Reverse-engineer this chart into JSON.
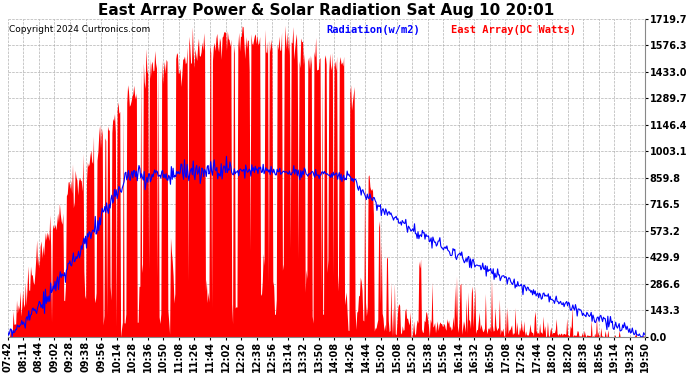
{
  "title": "East Array Power & Solar Radiation Sat Aug 10 20:01",
  "copyright": "Copyright 2024 Curtronics.com",
  "legend_radiation": "Radiation(w/m2)",
  "legend_east": "East Array(DC Watts)",
  "radiation_color": "blue",
  "east_color": "red",
  "ymin": 0.0,
  "ymax": 1719.7,
  "yticks": [
    0.0,
    143.3,
    286.6,
    429.9,
    573.2,
    716.5,
    859.8,
    1003.1,
    1146.4,
    1289.7,
    1433.0,
    1576.3,
    1719.7
  ],
  "background_color": "#ffffff",
  "grid_color": "#cccccc",
  "title_fontsize": 11,
  "tick_fontsize": 7,
  "time_labels": [
    "07:42",
    "08:11",
    "08:44",
    "09:02",
    "09:28",
    "09:38",
    "09:56",
    "10:14",
    "10:28",
    "10:36",
    "10:50",
    "11:08",
    "11:26",
    "11:44",
    "12:02",
    "12:20",
    "12:38",
    "12:56",
    "13:14",
    "13:32",
    "13:50",
    "14:08",
    "14:26",
    "14:44",
    "15:02",
    "15:08",
    "15:20",
    "15:38",
    "15:56",
    "16:14",
    "16:32",
    "16:50",
    "17:08",
    "17:26",
    "17:44",
    "18:02",
    "18:20",
    "18:38",
    "18:56",
    "19:14",
    "19:32",
    "19:50"
  ]
}
